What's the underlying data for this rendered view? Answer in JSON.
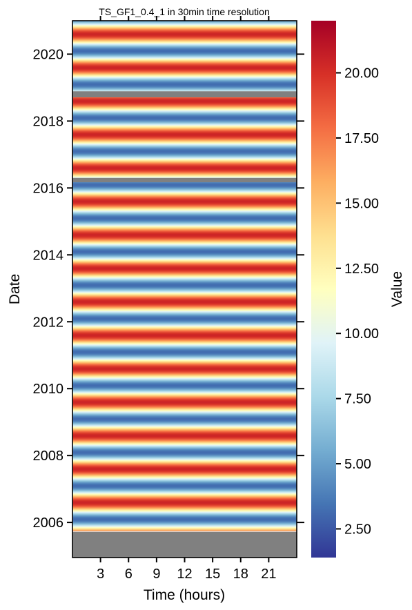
{
  "chart_data": {
    "type": "heatmap",
    "title": "TS_GF1_0.4_1 in 30min time resolution",
    "xlabel": "Time (hours)",
    "ylabel": "Date",
    "colorbar_label": "Value",
    "colormap": "RdYlBu_r",
    "x_ticks": [
      3,
      6,
      9,
      12,
      15,
      18,
      21
    ],
    "x_tick_labels": [
      "3",
      "6",
      "9",
      "12",
      "15",
      "18",
      "21"
    ],
    "xlim": [
      0,
      24
    ],
    "y_ticks": [
      2006,
      2008,
      2010,
      2012,
      2014,
      2016,
      2018,
      2020
    ],
    "y_tick_labels": [
      "2006",
      "2008",
      "2010",
      "2012",
      "2014",
      "2016",
      "2018",
      "2020"
    ],
    "ylim": [
      2004.95,
      2021.0
    ],
    "data_start": 2005.75,
    "value_range": [
      1.4,
      22.0
    ],
    "colorbar_ticks": [
      2.5,
      5.0,
      7.5,
      10.0,
      12.5,
      15.0,
      17.5,
      20.0
    ],
    "colorbar_tick_labels": [
      "2.50",
      "5.00",
      "7.50",
      "10.00",
      "12.50",
      "15.00",
      "17.50",
      "20.00"
    ],
    "seasonal_cycle": {
      "period_years": 1,
      "mean": 11.8,
      "amplitude": 8.6,
      "peak_fraction_of_year": 0.6
    },
    "missing_data_spans": [
      {
        "from": 2004.95,
        "to": 2005.72
      },
      {
        "from": 2016.17,
        "to": 2016.3
      },
      {
        "from": 2018.71,
        "to": 2018.89
      }
    ],
    "missing_color": "#808080"
  }
}
